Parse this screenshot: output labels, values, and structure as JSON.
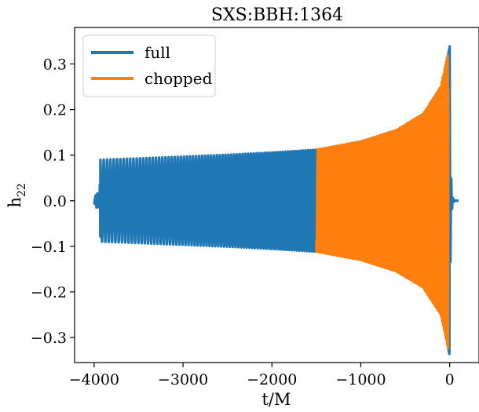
{
  "chart_data": {
    "type": "line",
    "title": "SXS:BBH:1364",
    "xlabel": "t/M",
    "ylabel": "h",
    "ylabel_sub": "22",
    "xlim": [
      -4220,
      330
    ],
    "ylim": [
      -0.355,
      0.38
    ],
    "x_ticks": [
      -4000,
      -3000,
      -2000,
      -1000,
      0
    ],
    "x_tick_labels": [
      "−4000",
      "−3000",
      "−2000",
      "−1000",
      "0"
    ],
    "y_ticks": [
      0.3,
      0.2,
      0.1,
      0.0,
      -0.1,
      -0.2,
      -0.3
    ],
    "y_tick_labels": [
      "0.3",
      "0.2",
      "0.1",
      "0.0",
      "−0.1",
      "−0.2",
      "−0.3"
    ],
    "grid": false,
    "legend": {
      "placement": "top-left"
    },
    "series": [
      {
        "name": "full",
        "color": "#1f77b4",
        "x_start": -4000,
        "x_end": 100,
        "junk_radiation_end": -3930,
        "merger_time": 0,
        "envelope": [
          [
            -3930,
            0.09
          ],
          [
            -3500,
            0.093
          ],
          [
            -3000,
            0.097
          ],
          [
            -2500,
            0.101
          ],
          [
            -2000,
            0.106
          ],
          [
            -1500,
            0.112
          ],
          [
            -1000,
            0.13
          ],
          [
            -600,
            0.155
          ],
          [
            -300,
            0.19
          ],
          [
            -100,
            0.25
          ],
          [
            0,
            0.34
          ]
        ]
      },
      {
        "name": "chopped",
        "color": "#ff7f0e",
        "x_start": -1500,
        "x_end": -15
      }
    ]
  }
}
